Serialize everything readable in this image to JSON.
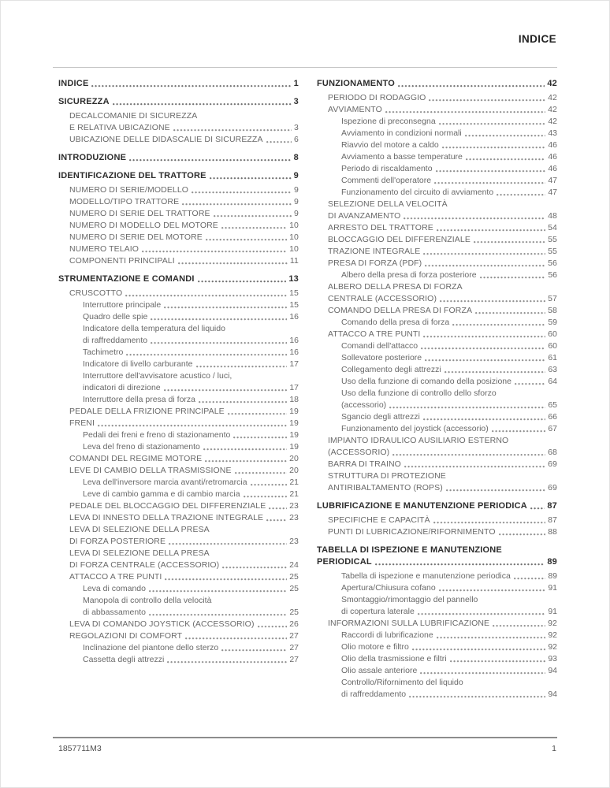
{
  "header": {
    "title": "INDICE"
  },
  "footer": {
    "doc_code": "1857711M3",
    "page": "1"
  },
  "colors": {
    "heading_text": "#2d2d2d",
    "body_text": "#696969",
    "rule": "#c4c4c4",
    "footer_rule": "#8d8d8d"
  },
  "toc": {
    "left": [
      {
        "l": 1,
        "t": [
          "INDICE"
        ],
        "p": "1"
      },
      {
        "l": 1,
        "t": [
          "SICUREZZA"
        ],
        "p": "3"
      },
      {
        "l": 2,
        "t": [
          "DECALCOMANIE DI SICUREZZA",
          "E RELATIVA UBICAZIONE"
        ],
        "p": "3"
      },
      {
        "l": 2,
        "t": [
          "UBICAZIONE DELLE DIDASCALIE DI SICUREZZA"
        ],
        "p": "6"
      },
      {
        "l": 1,
        "t": [
          "INTRODUZIONE"
        ],
        "p": "8"
      },
      {
        "l": 1,
        "t": [
          "IDENTIFICAZIONE DEL TRATTORE"
        ],
        "p": "9"
      },
      {
        "l": 2,
        "t": [
          "NUMERO DI SERIE/MODELLO"
        ],
        "p": "9"
      },
      {
        "l": 2,
        "t": [
          "MODELLO/TIPO TRATTORE"
        ],
        "p": "9"
      },
      {
        "l": 2,
        "t": [
          "NUMERO DI SERIE DEL TRATTORE"
        ],
        "p": "9"
      },
      {
        "l": 2,
        "t": [
          "NUMERO DI MODELLO DEL MOTORE"
        ],
        "p": "10"
      },
      {
        "l": 2,
        "t": [
          "NUMERO DI SERIE DEL MOTORE"
        ],
        "p": "10"
      },
      {
        "l": 2,
        "t": [
          "NUMERO TELAIO"
        ],
        "p": "10"
      },
      {
        "l": 2,
        "t": [
          "COMPONENTI PRINCIPALI"
        ],
        "p": "11"
      },
      {
        "l": 1,
        "t": [
          "STRUMENTAZIONE E COMANDI"
        ],
        "p": "13"
      },
      {
        "l": 2,
        "t": [
          "CRUSCOTTO"
        ],
        "p": "15"
      },
      {
        "l": 3,
        "t": [
          "Interruttore principale"
        ],
        "p": "15"
      },
      {
        "l": 3,
        "t": [
          "Quadro delle spie"
        ],
        "p": "16"
      },
      {
        "l": 3,
        "t": [
          "Indicatore della temperatura del liquido",
          "di raffreddamento"
        ],
        "p": "16"
      },
      {
        "l": 3,
        "t": [
          "Tachimetro"
        ],
        "p": "16"
      },
      {
        "l": 3,
        "t": [
          "Indicatore di livello carburante"
        ],
        "p": "17"
      },
      {
        "l": 3,
        "t": [
          "Interruttore dell'avvisatore acustico / luci,",
          "indicatori di direzione"
        ],
        "p": "17"
      },
      {
        "l": 3,
        "t": [
          "Interruttore della presa di forza"
        ],
        "p": "18"
      },
      {
        "l": 2,
        "t": [
          "PEDALE DELLA FRIZIONE PRINCIPALE"
        ],
        "p": "19"
      },
      {
        "l": 2,
        "t": [
          "FRENI"
        ],
        "p": "19"
      },
      {
        "l": 3,
        "t": [
          "Pedali dei freni e freno di stazionamento"
        ],
        "p": "19"
      },
      {
        "l": 3,
        "t": [
          "Leva del freno di stazionamento"
        ],
        "p": "19"
      },
      {
        "l": 2,
        "t": [
          "COMANDI DEL REGIME MOTORE"
        ],
        "p": "20"
      },
      {
        "l": 2,
        "t": [
          "LEVE DI CAMBIO DELLA TRASMISSIONE"
        ],
        "p": "20"
      },
      {
        "l": 3,
        "t": [
          "Leva dell'inversore marcia avanti/retromarcia"
        ],
        "p": "21"
      },
      {
        "l": 3,
        "t": [
          "Leve di cambio gamma e di cambio marcia"
        ],
        "p": "21"
      },
      {
        "l": 2,
        "t": [
          "PEDALE DEL BLOCCAGGIO DEL DIFFERENZIALE"
        ],
        "p": "23"
      },
      {
        "l": 2,
        "t": [
          "LEVA DI INNESTO DELLA TRAZIONE INTEGRALE"
        ],
        "p": "23"
      },
      {
        "l": 2,
        "t": [
          "LEVA DI SELEZIONE DELLA PRESA",
          "DI FORZA POSTERIORE"
        ],
        "p": "23"
      },
      {
        "l": 2,
        "t": [
          "LEVA DI SELEZIONE DELLA PRESA",
          "DI FORZA CENTRALE (ACCESSORIO)"
        ],
        "p": "24"
      },
      {
        "l": 2,
        "t": [
          "ATTACCO A TRE PUNTI"
        ],
        "p": "25"
      },
      {
        "l": 3,
        "t": [
          "Leva di comando"
        ],
        "p": "25"
      },
      {
        "l": 3,
        "t": [
          "Manopola di controllo della velocità",
          "di abbassamento"
        ],
        "p": "25"
      },
      {
        "l": 2,
        "t": [
          "LEVA DI COMANDO JOYSTICK (ACCESSORIO)"
        ],
        "p": "26"
      },
      {
        "l": 2,
        "t": [
          "REGOLAZIONI DI COMFORT"
        ],
        "p": "27"
      },
      {
        "l": 3,
        "t": [
          "Inclinazione del piantone dello sterzo"
        ],
        "p": "27"
      },
      {
        "l": 3,
        "t": [
          "Cassetta degli attrezzi"
        ],
        "p": "27"
      }
    ],
    "right": [
      {
        "l": 1,
        "t": [
          "FUNZIONAMENTO"
        ],
        "p": "42"
      },
      {
        "l": 2,
        "t": [
          "PERIODO DI RODAGGIO"
        ],
        "p": "42"
      },
      {
        "l": 2,
        "t": [
          "AVVIAMENTO"
        ],
        "p": "42"
      },
      {
        "l": 3,
        "t": [
          "Ispezione di preconsegna"
        ],
        "p": "42"
      },
      {
        "l": 3,
        "t": [
          "Avviamento in condizioni normali"
        ],
        "p": "43"
      },
      {
        "l": 3,
        "t": [
          "Riavvio del motore a caldo"
        ],
        "p": "46"
      },
      {
        "l": 3,
        "t": [
          "Avviamento a basse temperature"
        ],
        "p": "46"
      },
      {
        "l": 3,
        "t": [
          "Periodo di riscaldamento"
        ],
        "p": "46"
      },
      {
        "l": 3,
        "t": [
          "Commenti dell'operatore"
        ],
        "p": "47"
      },
      {
        "l": 3,
        "t": [
          "Funzionamento del circuito di avviamento"
        ],
        "p": "47"
      },
      {
        "l": 2,
        "t": [
          "SELEZIONE DELLA VELOCITÀ",
          "DI AVANZAMENTO"
        ],
        "p": "48"
      },
      {
        "l": 2,
        "t": [
          "ARRESTO DEL TRATTORE"
        ],
        "p": "54"
      },
      {
        "l": 2,
        "t": [
          "BLOCCAGGIO DEL DIFFERENZIALE"
        ],
        "p": "55"
      },
      {
        "l": 2,
        "t": [
          "TRAZIONE INTEGRALE"
        ],
        "p": "55"
      },
      {
        "l": 2,
        "t": [
          "PRESA DI FORZA (PDF)"
        ],
        "p": "56"
      },
      {
        "l": 3,
        "t": [
          "Albero della presa di forza posteriore"
        ],
        "p": "56"
      },
      {
        "l": 2,
        "t": [
          "ALBERO DELLA PRESA DI FORZA",
          "CENTRALE (ACCESSORIO)"
        ],
        "p": "57"
      },
      {
        "l": 2,
        "t": [
          "COMANDO DELLA PRESA DI FORZA"
        ],
        "p": "58"
      },
      {
        "l": 3,
        "t": [
          "Comando della presa di forza"
        ],
        "p": "59"
      },
      {
        "l": 2,
        "t": [
          "ATTACCO A TRE PUNTI"
        ],
        "p": "60"
      },
      {
        "l": 3,
        "t": [
          "Comandi dell'attacco"
        ],
        "p": "60"
      },
      {
        "l": 3,
        "t": [
          "Sollevatore posteriore"
        ],
        "p": "61"
      },
      {
        "l": 3,
        "t": [
          "Collegamento degli attrezzi"
        ],
        "p": "63"
      },
      {
        "l": 3,
        "t": [
          "Uso della funzione di comando della posizione"
        ],
        "p": "64"
      },
      {
        "l": 3,
        "t": [
          "Uso della funzione di controllo dello sforzo",
          "(accessorio)"
        ],
        "p": "65"
      },
      {
        "l": 3,
        "t": [
          "Sgancio degli attrezzi"
        ],
        "p": "66"
      },
      {
        "l": 3,
        "t": [
          "Funzionamento del joystick (accessorio)"
        ],
        "p": "67"
      },
      {
        "l": 2,
        "t": [
          "IMPIANTO IDRAULICO AUSILIARIO ESTERNO",
          "(ACCESSORIO)"
        ],
        "p": "68"
      },
      {
        "l": 2,
        "t": [
          "BARRA DI TRAINO"
        ],
        "p": "69"
      },
      {
        "l": 2,
        "t": [
          "STRUTTURA DI PROTEZIONE",
          "ANTIRIBALTAMENTO (ROPS)"
        ],
        "p": "69"
      },
      {
        "l": 1,
        "t": [
          "LUBRIFICAZIONE E MANUTENZIONE PERIODICA"
        ],
        "p": "87"
      },
      {
        "l": 2,
        "t": [
          "SPECIFICHE E CAPACITÀ"
        ],
        "p": "87"
      },
      {
        "l": 2,
        "t": [
          "PUNTI DI LUBRICAZIONE/RIFORNIMENTO"
        ],
        "p": "88"
      },
      {
        "l": 1,
        "t": [
          "TABELLA DI ISPEZIONE E MANUTENZIONE",
          "PERIODICAL"
        ],
        "p": "89"
      },
      {
        "l": 3,
        "t": [
          "Tabella di ispezione e manutenzione periodica"
        ],
        "p": "89"
      },
      {
        "l": 3,
        "t": [
          "Apertura/Chiusura cofano"
        ],
        "p": "91"
      },
      {
        "l": 3,
        "t": [
          "Smontaggio/rimontaggio del pannello",
          "di copertura laterale"
        ],
        "p": "91"
      },
      {
        "l": 2,
        "t": [
          "INFORMAZIONI SULLA LUBRIFICAZIONE"
        ],
        "p": "92"
      },
      {
        "l": 3,
        "t": [
          "Raccordi di lubrificazione"
        ],
        "p": "92"
      },
      {
        "l": 3,
        "t": [
          "Olio motore e filtro"
        ],
        "p": "92"
      },
      {
        "l": 3,
        "t": [
          "Olio della trasmissione e filtri"
        ],
        "p": "93"
      },
      {
        "l": 3,
        "t": [
          "Olio assale anteriore"
        ],
        "p": "94"
      },
      {
        "l": 3,
        "t": [
          "Controllo/Rifornimento del liquido",
          "di raffreddamento"
        ],
        "p": "94"
      }
    ]
  }
}
